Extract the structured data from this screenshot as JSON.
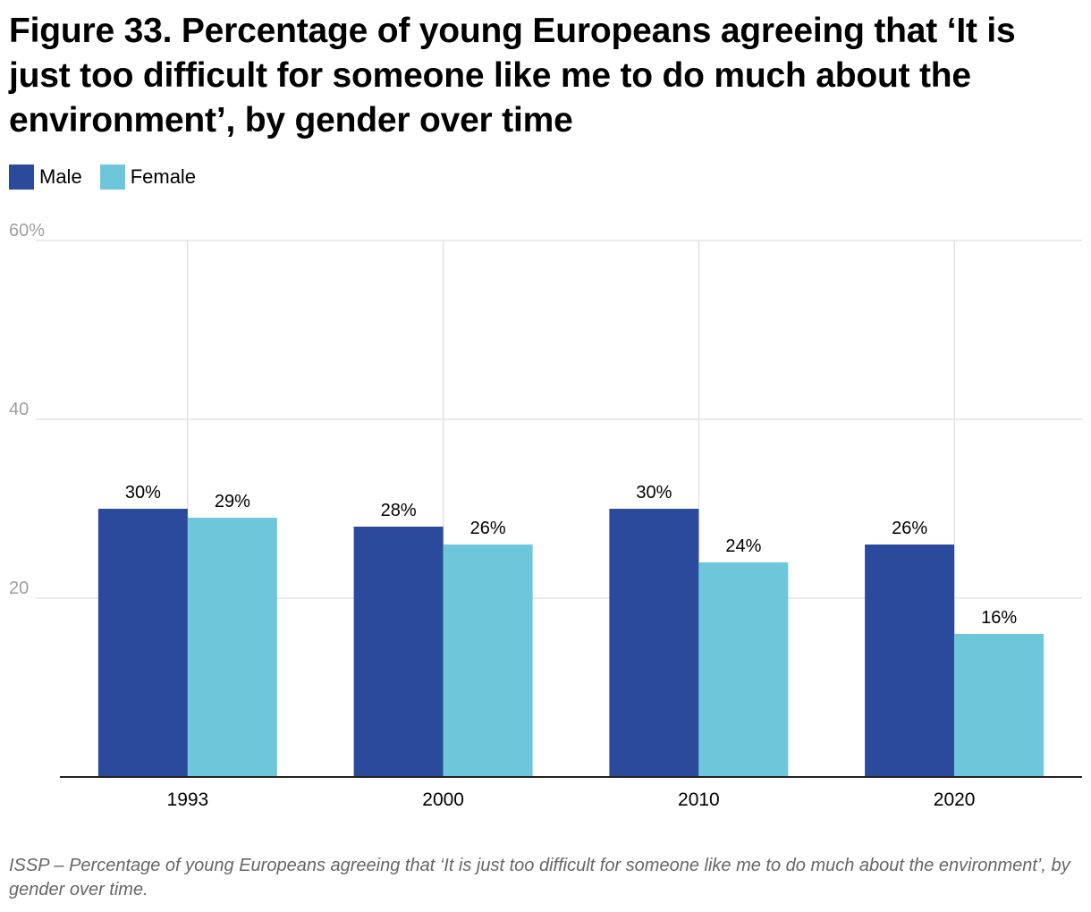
{
  "chart_data": {
    "type": "bar",
    "title": "Figure 33. Percentage of young Europeans agreeing that ‘It is just too difficult for someone like me to do much about the environment’, by gender over time",
    "categories": [
      "1993",
      "2000",
      "2010",
      "2020"
    ],
    "series": [
      {
        "name": "Male",
        "color": "#2b4a9b",
        "values": [
          30,
          28,
          30,
          26
        ],
        "labels": [
          "30%",
          "28%",
          "30%",
          "26%"
        ]
      },
      {
        "name": "Female",
        "color": "#6ec6da",
        "values": [
          29,
          26,
          24,
          16
        ],
        "labels": [
          "29%",
          "26%",
          "24%",
          "16%"
        ]
      }
    ],
    "ylim": [
      0,
      60
    ],
    "yticks": [
      20,
      40,
      60
    ],
    "ytick_labels": [
      "20",
      "40",
      "60%"
    ],
    "xlabel": "",
    "ylabel": "",
    "grid": true,
    "legend_position": "top-left"
  },
  "footnote": "ISSP – Percentage of young Europeans agreeing that ‘It is just too difficult for someone like me to do much about the environment’, by gender over time."
}
